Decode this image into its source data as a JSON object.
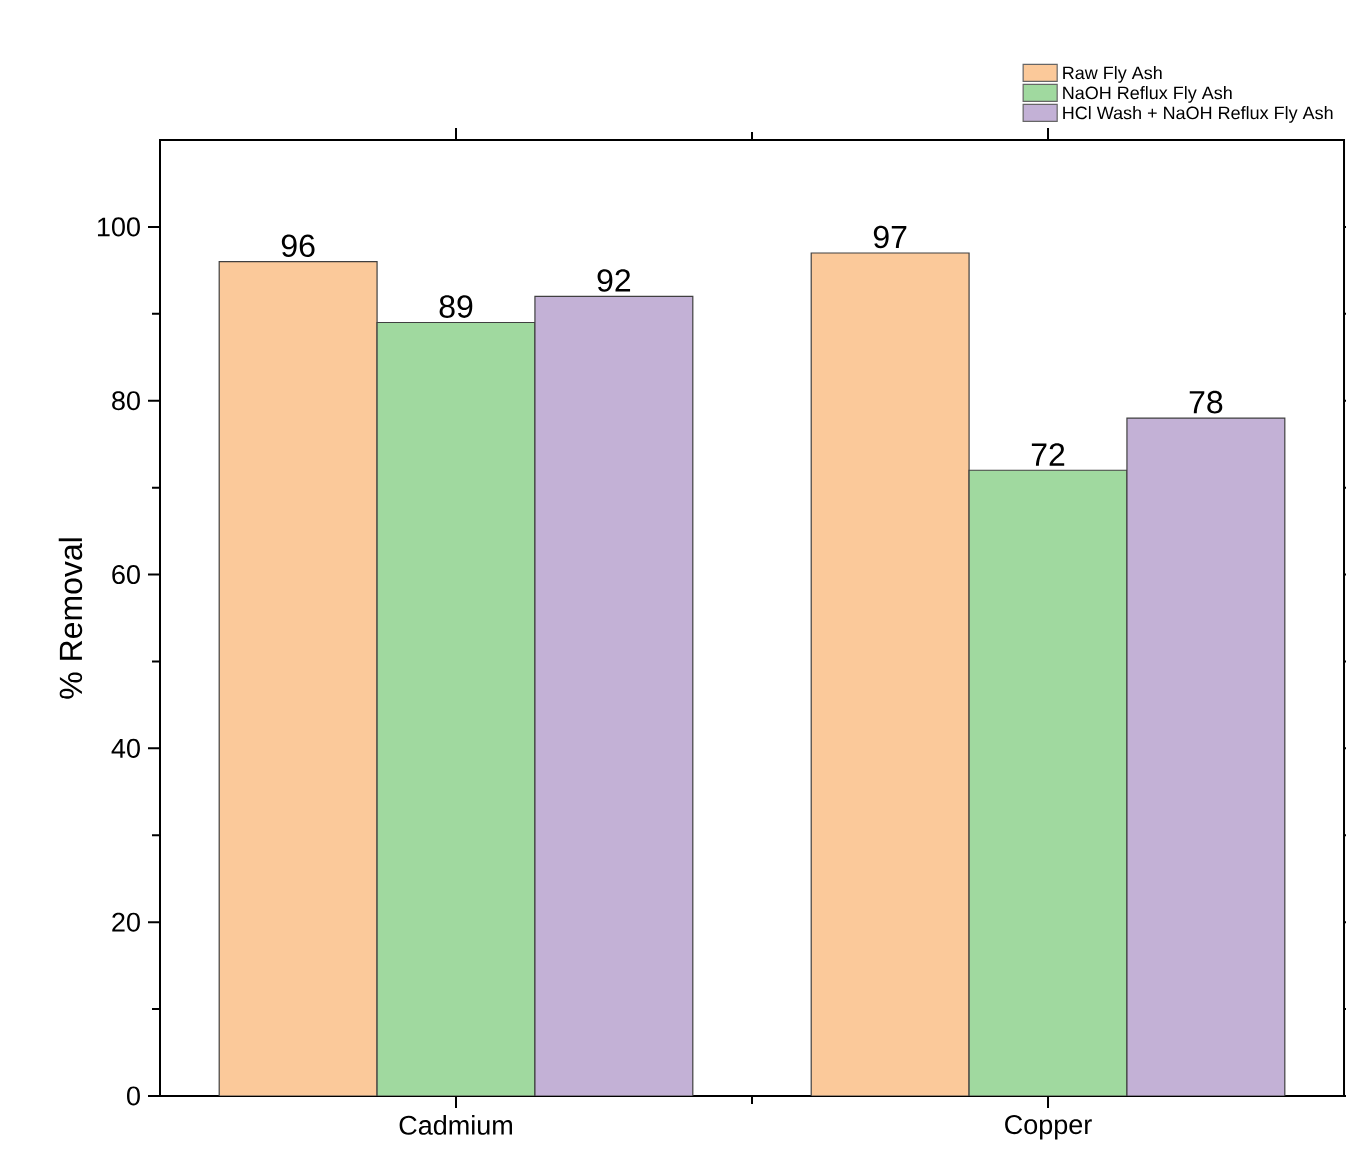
{
  "chart_data": {
    "type": "bar",
    "ylabel": "% Removal",
    "categories": [
      "Cadmium",
      "Copper"
    ],
    "series": [
      {
        "name": "Raw Fly Ash",
        "color": "#fbc99a",
        "values": [
          96,
          97
        ]
      },
      {
        "name": "NaOH Reflux Fly Ash",
        "color": "#a0d99f",
        "values": [
          89,
          72
        ]
      },
      {
        "name": "HCl Wash + NaOH Reflux Fly Ash",
        "color": "#c3b1d6",
        "values": [
          92,
          78
        ]
      }
    ],
    "ylim": [
      0,
      110
    ],
    "yticks": [
      0,
      20,
      40,
      60,
      80,
      100
    ],
    "data_labels": true,
    "legend": "top right",
    "grid": false
  }
}
